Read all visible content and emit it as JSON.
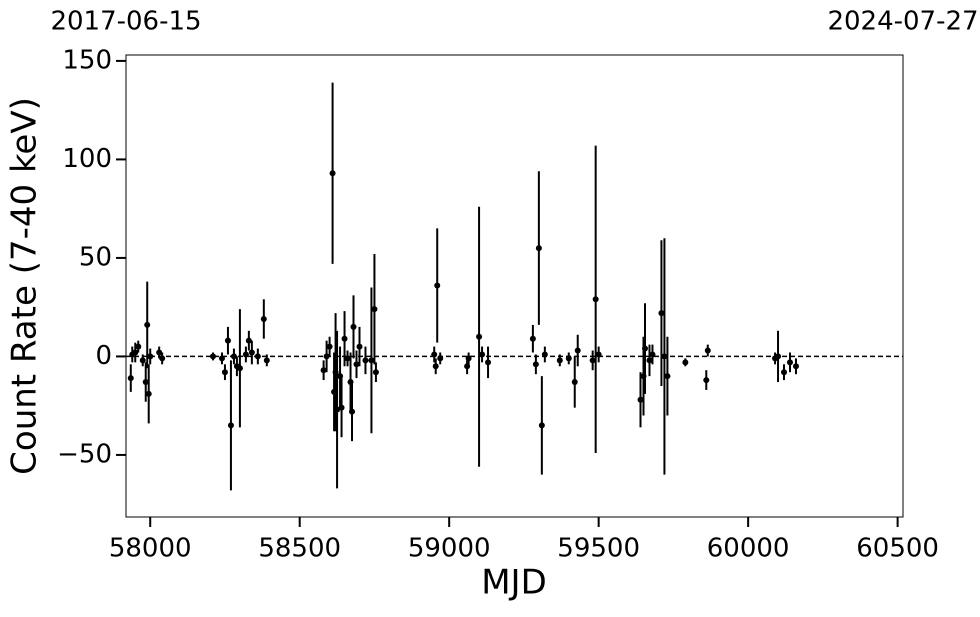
{
  "chart_data": {
    "type": "errorbar",
    "xlabel": "MJD",
    "ylabel": "Count Rate (7-40 keV)",
    "xlim": [
      57919,
      60518
    ],
    "ylim": [
      -81.5,
      153
    ],
    "xticks": [
      58000,
      58500,
      59000,
      59500,
      60000,
      60500
    ],
    "yticks": [
      {
        "value": -50,
        "label": "−50"
      },
      0,
      50,
      100,
      150
    ],
    "x2ticks": [
      {
        "value": 57919,
        "label": "2017-06-15"
      },
      {
        "value": 60518,
        "label": "2024-07-27"
      }
    ],
    "hline": 0,
    "color": "#000000",
    "x": [
      57935,
      57940,
      57950,
      57960,
      57975,
      57985,
      57990,
      57995,
      58000,
      58030,
      58040,
      58210,
      58240,
      58250,
      58260,
      58270,
      58280,
      58290,
      58300,
      58320,
      58330,
      58340,
      58360,
      58380,
      58390,
      58580,
      58590,
      58600,
      58610,
      58615,
      58620,
      58625,
      58635,
      58640,
      58650,
      58660,
      58670,
      58675,
      58680,
      58690,
      58700,
      58720,
      58740,
      58750,
      58755,
      58950,
      58955,
      58960,
      58970,
      59060,
      59065,
      59100,
      59110,
      59130,
      59280,
      59290,
      59300,
      59310,
      59320,
      59370,
      59400,
      59420,
      59430,
      59480,
      59490,
      59500,
      59640,
      59650,
      59655,
      59670,
      59680,
      59710,
      59720,
      59730,
      59790,
      59860,
      59865,
      60090,
      60100,
      60120,
      60140,
      60160
    ],
    "values": [
      -11,
      1,
      2,
      5,
      -2,
      -13,
      16,
      -19,
      0,
      2,
      -1,
      0,
      -1,
      -8,
      8,
      -35,
      0,
      -5,
      -6,
      1,
      8,
      2,
      0,
      19,
      -2,
      -7,
      0,
      5,
      93,
      -18,
      -8,
      -27,
      -10,
      -26,
      9,
      -1,
      -13,
      -28,
      15,
      -4,
      5,
      -2,
      -2,
      24,
      -8,
      1,
      -5,
      36,
      -1,
      -5,
      -1,
      10,
      1,
      -3,
      9,
      -4,
      55,
      -35,
      1,
      -2,
      -1,
      -13,
      3,
      -2,
      29,
      1,
      -22,
      -10,
      4,
      -2,
      1,
      22,
      0,
      -10,
      -3,
      -12,
      3,
      -1,
      0,
      -8,
      -3,
      -5
    ],
    "errors": [
      7,
      4,
      5,
      3,
      3,
      10,
      22,
      15,
      4,
      3,
      3,
      2,
      3,
      4,
      7,
      33,
      4,
      5,
      30,
      4,
      5,
      6,
      4,
      10,
      3,
      5,
      8,
      5,
      46,
      20,
      30,
      40,
      15,
      15,
      14,
      4,
      15,
      15,
      16,
      7,
      10,
      7,
      37,
      28,
      5,
      4,
      4,
      29,
      3,
      4,
      3,
      66,
      4,
      8,
      7,
      5,
      39,
      25,
      4,
      3,
      3,
      13,
      8,
      5,
      78,
      4,
      14,
      20,
      23,
      8,
      5,
      37,
      60,
      20,
      2,
      5,
      3,
      3,
      13,
      4,
      5,
      4
    ]
  }
}
